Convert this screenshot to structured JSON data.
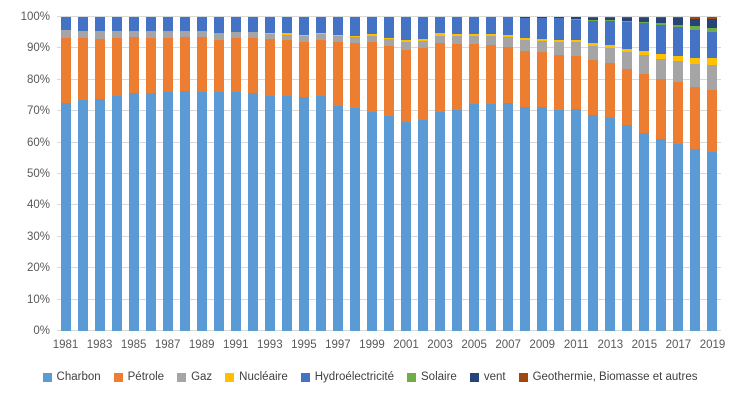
{
  "chart_data": {
    "type": "bar",
    "subtype": "stacked-100",
    "title": "",
    "xlabel": "",
    "ylabel": "",
    "ylim": [
      0,
      100
    ],
    "grid": true,
    "legend_position": "bottom",
    "y_ticks": [
      "0%",
      "10%",
      "20%",
      "30%",
      "40%",
      "50%",
      "60%",
      "70%",
      "80%",
      "90%",
      "100%"
    ],
    "x_tick_labels": [
      "1981",
      "1983",
      "1985",
      "1987",
      "1989",
      "1991",
      "1993",
      "1995",
      "1997",
      "1999",
      "2001",
      "2003",
      "2005",
      "2007",
      "2009",
      "2011",
      "2013",
      "2015",
      "2017",
      "2019"
    ],
    "categories": [
      1981,
      1982,
      1983,
      1984,
      1985,
      1986,
      1987,
      1988,
      1989,
      1990,
      1991,
      1992,
      1993,
      1994,
      1995,
      1996,
      1997,
      1998,
      1999,
      2000,
      2001,
      2002,
      2003,
      2004,
      2005,
      2006,
      2007,
      2008,
      2009,
      2010,
      2011,
      2012,
      2013,
      2014,
      2015,
      2016,
      2017,
      2018,
      2019
    ],
    "series": [
      {
        "name": "Charbon",
        "color": "#5B9BD5",
        "values": [
          72.6,
          73.5,
          74.0,
          75.0,
          75.8,
          75.8,
          76.1,
          76.3,
          76.1,
          76.2,
          76.2,
          75.7,
          74.7,
          74.9,
          74.6,
          74.7,
          71.8,
          70.9,
          69.8,
          68.5,
          66.7,
          67.1,
          69.8,
          70.3,
          72.4,
          72.4,
          72.5,
          71.5,
          71.4,
          70.3,
          70.6,
          68.8,
          67.9,
          65.7,
          63.2,
          61.1,
          59.7,
          58.0,
          57.1
        ]
      },
      {
        "name": "Pétrole",
        "color": "#ED7D31",
        "values": [
          20.8,
          19.7,
          19.1,
          18.2,
          17.8,
          17.6,
          17.3,
          17.3,
          17.4,
          16.6,
          17.1,
          17.5,
          18.3,
          17.7,
          17.5,
          18.0,
          20.2,
          20.8,
          22.1,
          22.2,
          22.9,
          23.0,
          21.9,
          21.2,
          19.0,
          18.6,
          18.0,
          17.7,
          17.4,
          17.6,
          17.1,
          17.4,
          17.3,
          17.8,
          18.8,
          19.3,
          19.6,
          19.7,
          19.7
        ]
      },
      {
        "name": "Gaz",
        "color": "#A5A5A5",
        "values": [
          2.5,
          2.4,
          2.3,
          2.2,
          2.1,
          2.1,
          2.0,
          2.0,
          2.0,
          2.1,
          2.0,
          1.9,
          1.9,
          1.8,
          1.8,
          1.8,
          1.9,
          2.0,
          2.2,
          2.2,
          2.5,
          2.4,
          2.4,
          2.4,
          2.5,
          2.8,
          3.1,
          3.4,
          3.6,
          4.0,
          4.4,
          4.6,
          5.0,
          5.4,
          5.8,
          6.1,
          6.6,
          7.4,
          7.8
        ]
      },
      {
        "name": "Nucléaire",
        "color": "#FFC000",
        "values": [
          0,
          0,
          0,
          0,
          0,
          0,
          0,
          0,
          0,
          0,
          0,
          0,
          0.1,
          0.4,
          0.4,
          0.4,
          0.4,
          0.4,
          0.4,
          0.4,
          0.5,
          0.6,
          0.8,
          0.8,
          0.8,
          0.7,
          0.7,
          0.7,
          0.7,
          0.7,
          0.7,
          0.8,
          0.9,
          1.0,
          1.3,
          1.6,
          1.8,
          2.0,
          2.2
        ]
      },
      {
        "name": "Hydroélectricité",
        "color": "#4472C4",
        "values": [
          4.1,
          4.4,
          4.6,
          4.6,
          4.3,
          4.5,
          4.6,
          4.4,
          4.5,
          5.1,
          4.7,
          4.9,
          5.0,
          5.2,
          5.7,
          5.1,
          5.7,
          5.9,
          5.5,
          6.7,
          7.4,
          6.9,
          5.1,
          5.3,
          5.3,
          5.5,
          5.7,
          6.6,
          6.7,
          7.1,
          6.6,
          7.5,
          7.8,
          8.6,
          8.9,
          9.4,
          9.0,
          8.8,
          8.4
        ]
      },
      {
        "name": "Solaire",
        "color": "#70AD47",
        "values": [
          0,
          0,
          0,
          0,
          0,
          0,
          0,
          0,
          0,
          0,
          0,
          0,
          0,
          0,
          0,
          0,
          0,
          0,
          0,
          0,
          0,
          0,
          0,
          0,
          0,
          0,
          0,
          0,
          0,
          0,
          0.1,
          0.1,
          0.1,
          0.2,
          0.3,
          0.5,
          0.8,
          1.1,
          1.3
        ]
      },
      {
        "name": "vent",
        "color": "#264478",
        "values": [
          0,
          0,
          0,
          0,
          0,
          0,
          0,
          0,
          0,
          0,
          0,
          0,
          0,
          0,
          0,
          0,
          0,
          0,
          0,
          0,
          0,
          0,
          0,
          0,
          0,
          0,
          0,
          0.1,
          0.2,
          0.3,
          0.5,
          0.7,
          0.9,
          1.1,
          1.5,
          1.7,
          2.1,
          2.5,
          2.8
        ]
      },
      {
        "name": "Geothermie, Biomasse et autres",
        "color": "#9E480E",
        "values": [
          0,
          0,
          0,
          0,
          0,
          0,
          0,
          0,
          0,
          0,
          0,
          0,
          0,
          0,
          0,
          0,
          0,
          0,
          0,
          0,
          0,
          0,
          0,
          0,
          0,
          0,
          0,
          0,
          0,
          0,
          0,
          0.1,
          0.1,
          0.2,
          0.2,
          0.3,
          0.4,
          0.5,
          0.7
        ]
      }
    ]
  },
  "colors": {
    "gridline": "#d9d9d9",
    "axis_text": "#595959",
    "legend_text": "#404040",
    "background": "#ffffff"
  }
}
